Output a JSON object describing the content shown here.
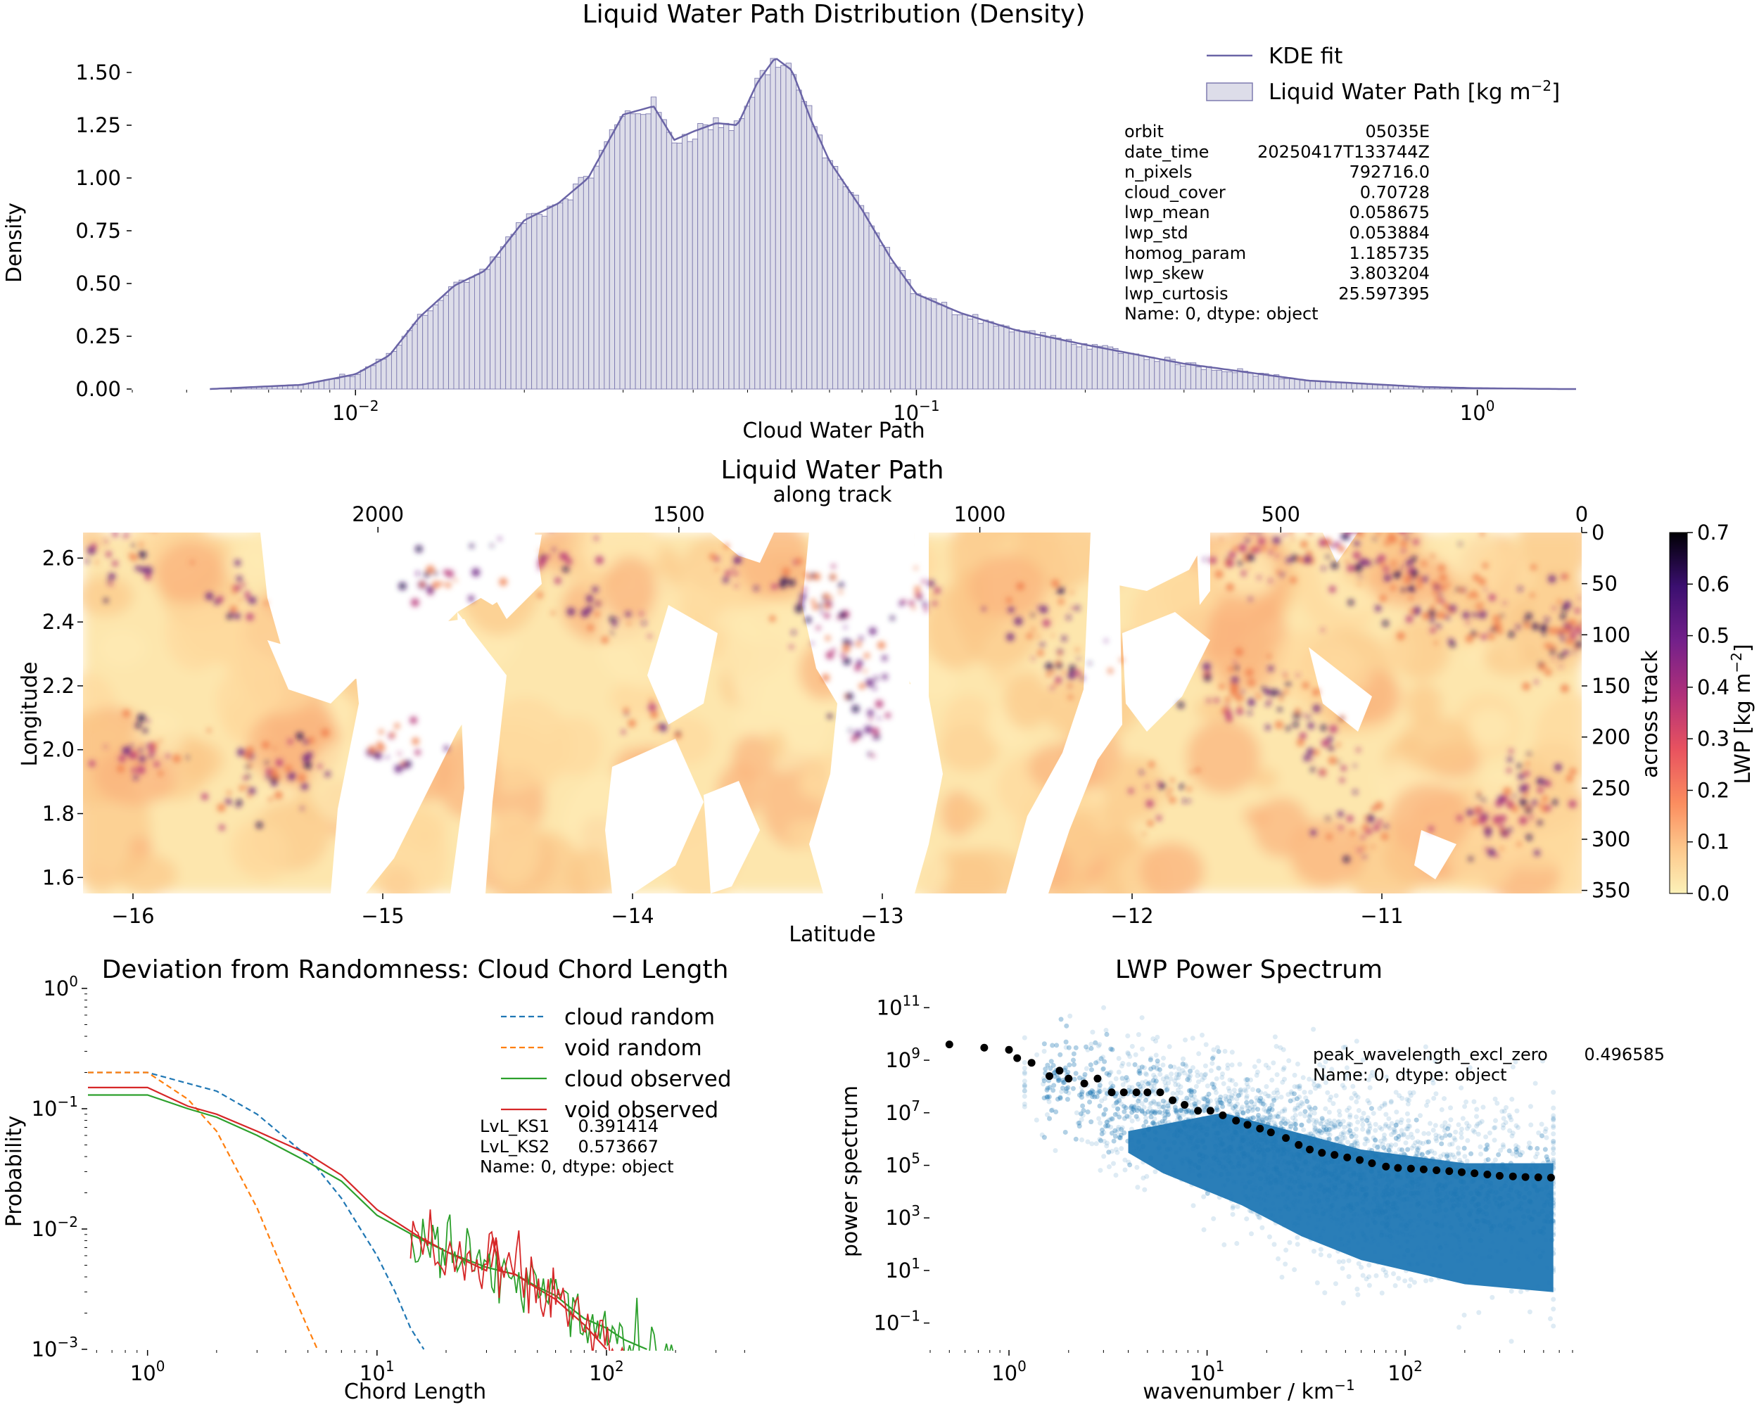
{
  "chart_data": [
    {
      "type": "histogram",
      "title": "Liquid Water Path Distribution (Density)",
      "xlabel": "Cloud Water Path",
      "ylabel": "Density",
      "xscale": "log",
      "xlim": [
        0.004,
        1.5
      ],
      "ylim": [
        0,
        1.66
      ],
      "xticks": [
        "0.01",
        "0.1",
        "1"
      ],
      "yticks": [
        "0.00",
        "0.25",
        "0.50",
        "0.75",
        "1.00",
        "1.25",
        "1.50"
      ],
      "legend": [
        "KDE fit",
        "Liquid Water Path [kg m^-2]"
      ],
      "legend_position": "top-right",
      "colors": {
        "bar_fill": "#dddde9",
        "bar_edge": "#7e7bb0",
        "kde": "#6a64a6"
      },
      "profile": {
        "x": [
          0.0055,
          0.008,
          0.01,
          0.0115,
          0.013,
          0.015,
          0.017,
          0.02,
          0.023,
          0.026,
          0.03,
          0.034,
          0.037,
          0.04,
          0.044,
          0.048,
          0.052,
          0.056,
          0.06,
          0.065,
          0.07,
          0.08,
          0.09,
          0.1,
          0.12,
          0.15,
          0.2,
          0.3,
          0.5,
          0.8,
          1.0,
          1.4
        ],
        "kde": [
          0,
          0.02,
          0.07,
          0.16,
          0.34,
          0.49,
          0.56,
          0.8,
          0.88,
          1.0,
          1.3,
          1.34,
          1.18,
          1.22,
          1.26,
          1.25,
          1.45,
          1.57,
          1.51,
          1.27,
          1.08,
          0.85,
          0.62,
          0.45,
          0.36,
          0.28,
          0.21,
          0.12,
          0.04,
          0.01,
          0.004,
          0
        ]
      },
      "stats": [
        {
          "key": "orbit",
          "value": "05035E"
        },
        {
          "key": "date_time",
          "value": "20250417T133744Z"
        },
        {
          "key": "n_pixels",
          "value": "792716.0"
        },
        {
          "key": "cloud_cover",
          "value": "0.70728"
        },
        {
          "key": "lwp_mean",
          "value": "0.058675"
        },
        {
          "key": "lwp_std",
          "value": "0.053884"
        },
        {
          "key": "homog_param",
          "value": "1.185735"
        },
        {
          "key": "lwp_skew",
          "value": "3.803204"
        },
        {
          "key": "lwp_curtosis",
          "value": "25.597395"
        }
      ],
      "stats_footer": "Name: 0, dtype: object"
    },
    {
      "type": "heatmap",
      "title": "Liquid Water Path",
      "xlabel": "Latitude",
      "ylabel": "Longitude",
      "top_xlabel": "along track",
      "right_ylabel": "across track",
      "colorbar_label": "LWP [kg m^-2]",
      "colorbar_range": [
        0.0,
        0.7
      ],
      "colormap": "magma_r",
      "xlim": [
        -16.2,
        -10.2
      ],
      "ylim": [
        1.55,
        2.68
      ],
      "xticks": [
        "-16",
        "-15",
        "-14",
        "-13",
        "-12",
        "-11"
      ],
      "yticks": [
        "1.6",
        "1.8",
        "2.0",
        "2.2",
        "2.4",
        "2.6"
      ],
      "top_ticks": [
        "2000",
        "1500",
        "1000",
        "500",
        "0"
      ],
      "right_ticks": [
        "0",
        "50",
        "100",
        "150",
        "200",
        "250",
        "300",
        "350"
      ],
      "colorbar_ticks": [
        "0.0",
        "0.1",
        "0.2",
        "0.3",
        "0.4",
        "0.5",
        "0.6",
        "0.7"
      ]
    },
    {
      "type": "line",
      "title": "Deviation from Randomness: Cloud Chord Length",
      "xlabel": "Chord Length",
      "ylabel": "Probability",
      "xscale": "log",
      "yscale": "log",
      "xlim": [
        0.55,
        450
      ],
      "ylim": [
        0.001,
        1.0
      ],
      "xticks": [
        "10^0",
        "10^1",
        "10^2"
      ],
      "yticks": [
        "10^0",
        "10^-1",
        "10^-2",
        "10^-3"
      ],
      "legend_position": "top-right",
      "series": [
        {
          "name": "cloud random",
          "style": "dashed",
          "color": "#1f77b4",
          "x": [
            0.55,
            1,
            2,
            3,
            5,
            7,
            10,
            12,
            14,
            16
          ],
          "y": [
            0.2,
            0.2,
            0.14,
            0.09,
            0.04,
            0.018,
            0.006,
            0.003,
            0.0015,
            0.001
          ]
        },
        {
          "name": "void random",
          "style": "dashed",
          "color": "#ff7f0e",
          "x": [
            0.55,
            1,
            1.5,
            2,
            3,
            4,
            5,
            5.5
          ],
          "y": [
            0.2,
            0.2,
            0.12,
            0.065,
            0.015,
            0.004,
            0.0015,
            0.001
          ]
        },
        {
          "name": "cloud observed",
          "style": "solid",
          "color": "#2ca02c",
          "x": [
            0.55,
            1,
            1.5,
            2,
            3,
            5,
            7,
            10,
            15,
            20,
            30,
            40,
            50,
            60,
            70,
            80,
            100,
            120,
            150
          ],
          "y": [
            0.13,
            0.13,
            0.1,
            0.085,
            0.06,
            0.036,
            0.025,
            0.013,
            0.0085,
            0.0065,
            0.0048,
            0.0042,
            0.0033,
            0.0028,
            0.0022,
            0.0018,
            0.0015,
            0.0012,
            0.001
          ]
        },
        {
          "name": "void observed",
          "style": "solid",
          "color": "#d62728",
          "x": [
            0.55,
            1,
            1.5,
            2,
            3,
            5,
            7,
            10,
            15,
            20,
            30,
            32,
            34,
            40,
            50,
            60,
            70,
            80,
            100
          ],
          "y": [
            0.15,
            0.15,
            0.105,
            0.09,
            0.065,
            0.042,
            0.028,
            0.0145,
            0.0088,
            0.0065,
            0.0045,
            0.0085,
            0.0045,
            0.0042,
            0.0032,
            0.0026,
            0.002,
            0.0016,
            0.001
          ]
        }
      ],
      "stats": [
        {
          "key": "LvL_KS1",
          "value": "0.391414"
        },
        {
          "key": "LvL_KS2",
          "value": "0.573667"
        }
      ],
      "stats_footer": "Name: 0, dtype: object"
    },
    {
      "type": "scatter",
      "title": "LWP Power Spectrum",
      "xlabel": "wavenumber / km^-1",
      "ylabel": "power spectrum",
      "xscale": "log",
      "yscale": "log",
      "xlim": [
        0.4,
        700
      ],
      "ylim": [
        0.01,
        1000000000000.0
      ],
      "xticks": [
        "10^0",
        "10^1",
        "10^2"
      ],
      "yticks": [
        "10^11",
        "10^9",
        "10^7",
        "10^5",
        "10^3",
        "10^1",
        "10^-1"
      ],
      "colors": {
        "scatter": "#1f77b4",
        "binned": "#000000"
      },
      "binned": {
        "x": [
          0.5,
          0.75,
          1.0,
          1.1,
          1.3,
          1.6,
          1.8,
          2.0,
          2.4,
          2.8,
          3.3,
          3.8,
          4.4,
          5.0,
          5.8,
          6.7,
          7.7,
          9.0,
          10.4,
          12,
          14,
          16,
          18.5,
          21,
          25,
          29,
          33,
          38,
          44,
          51,
          59,
          68,
          80,
          92,
          107,
          124,
          144,
          167,
          193,
          224,
          260,
          300,
          350,
          405,
          470,
          545
        ],
        "y": [
          4000000000.0,
          3000000000.0,
          2500000000.0,
          1200000000.0,
          800000000.0,
          250000000.0,
          400000000.0,
          200000000.0,
          130000000.0,
          200000000.0,
          60000000.0,
          60000000.0,
          60000000.0,
          60000000.0,
          60000000.0,
          30000000.0,
          20000000.0,
          12000000.0,
          12000000.0,
          8000000.0,
          5000000.0,
          3500000.0,
          2500000.0,
          1800000.0,
          1100000.0,
          600000.0,
          400000.0,
          300000.0,
          250000.0,
          200000.0,
          160000.0,
          120000.0,
          90000.0,
          80000.0,
          75000.0,
          70000.0,
          65000.0,
          60000.0,
          55000.0,
          50000.0,
          45000.0,
          40000.0,
          38000.0,
          36000.0,
          35000.0,
          34000.0
        ]
      },
      "stats": [
        {
          "key": "peak_wavelength_excl_zero",
          "value": "0.496585"
        }
      ],
      "stats_footer": "Name: 0, dtype: object"
    }
  ]
}
